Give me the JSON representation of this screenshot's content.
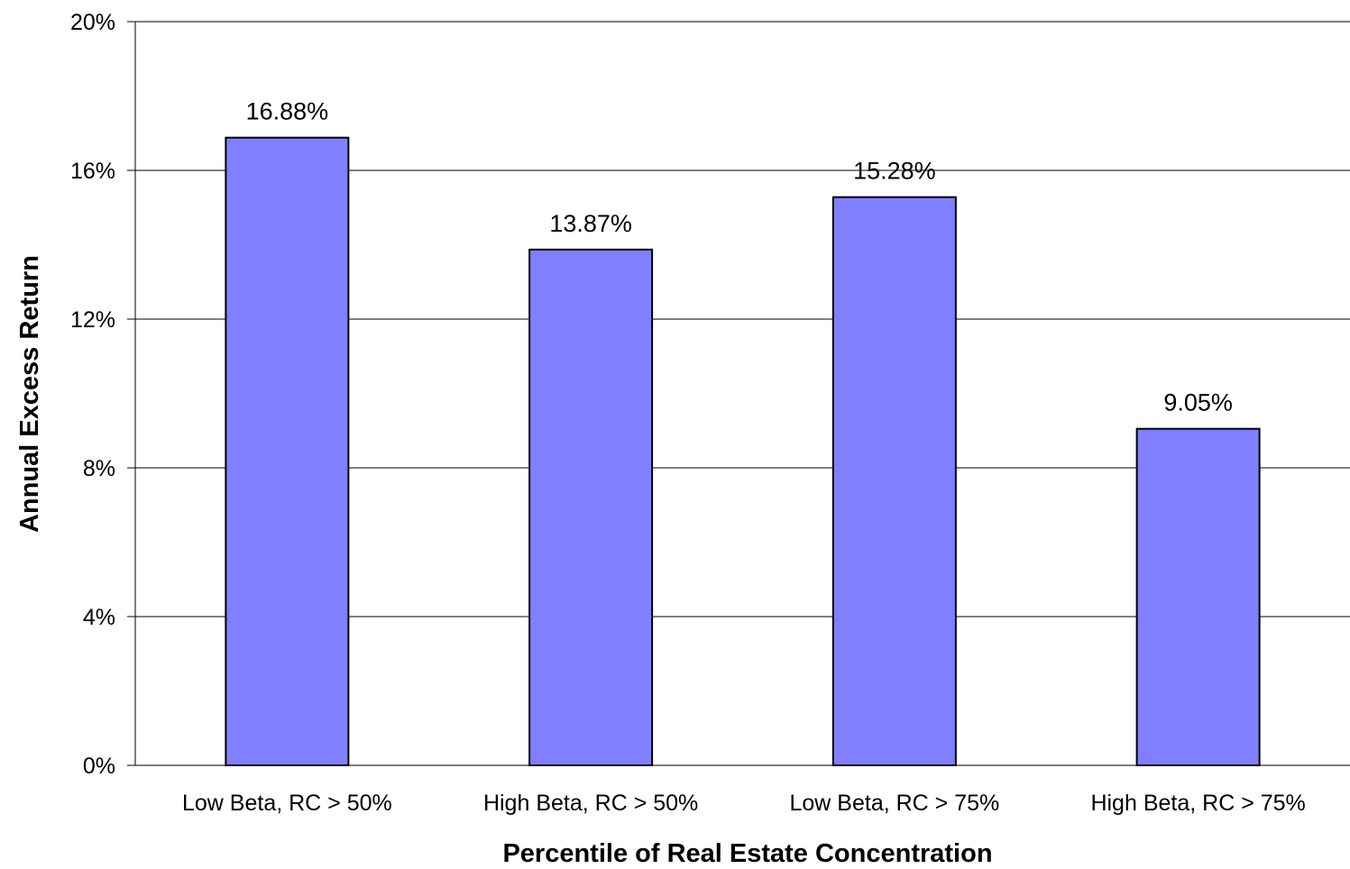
{
  "chart_data": {
    "type": "bar",
    "title": "",
    "xlabel": "Percentile of Real Estate Concentration",
    "ylabel": "Annual Excess Return",
    "categories": [
      "Low Beta, RC > 50%",
      "High Beta, RC > 50%",
      "Low Beta, RC > 75%",
      "High Beta, RC > 75%"
    ],
    "values": [
      16.88,
      13.87,
      15.28,
      9.05
    ],
    "data_labels": [
      "16.88%",
      "13.87%",
      "15.28%",
      "9.05%"
    ],
    "ylim": [
      0,
      20
    ],
    "yticks": [
      0,
      4,
      8,
      12,
      16,
      20
    ],
    "ytick_labels": [
      "0%",
      "4%",
      "8%",
      "12%",
      "16%",
      "20%"
    ],
    "grid": true,
    "legend": "none",
    "colors": {
      "bar_fill": "#8080ff",
      "bar_stroke": "#000000",
      "grid": "#000000",
      "axis": "#000000"
    }
  }
}
